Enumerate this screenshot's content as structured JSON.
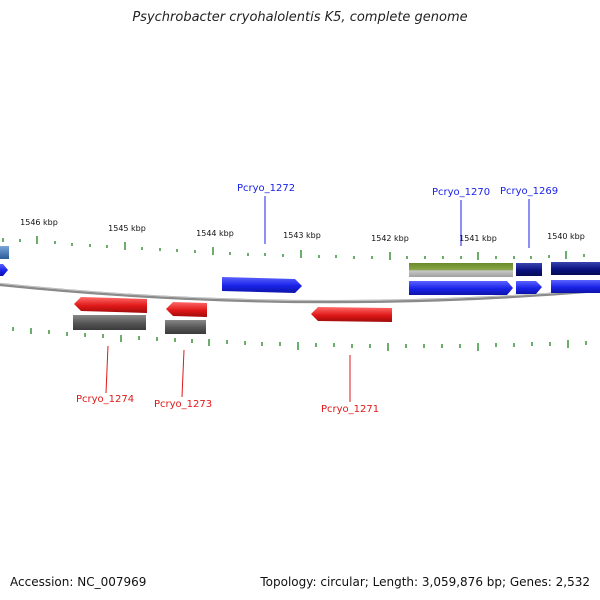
{
  "title": "Psychrobacter cryohalolentis K5, complete genome",
  "footer": {
    "accession": "Accession: NC_007969",
    "summary": "Topology: circular; Length: 3,059,876 bp; Genes: 2,532"
  },
  "kbp_labels": [
    "1546 kbp",
    "1545 kbp",
    "1544 kbp",
    "1543 kbp",
    "1542 kbp",
    "1541 kbp",
    "1540 kbp"
  ],
  "genes": [
    {
      "locus_tag": "Pcryo_1272",
      "strand": "+",
      "color": "#1a22e8"
    },
    {
      "locus_tag": "Pcryo_1270",
      "strand": "+",
      "color": "#1a22e8"
    },
    {
      "locus_tag": "Pcryo_1269",
      "strand": "+",
      "color": "#1a22e8"
    },
    {
      "locus_tag": "Pcryo_1274",
      "strand": "-",
      "color": "#e01818"
    },
    {
      "locus_tag": "Pcryo_1273",
      "strand": "-",
      "color": "#e01818"
    },
    {
      "locus_tag": "Pcryo_1271",
      "strand": "-",
      "color": "#e01818"
    }
  ],
  "colors": {
    "forward_cds": "#1a22e8",
    "reverse_cds": "#e01818",
    "forward_feature": "#0a1380",
    "reverse_feature": "#555555",
    "rna_feature": "#6a8a2a",
    "edge_feature": "#4a7ab8",
    "backbone": "#8a8a8a",
    "ticks": "#2c8a2c"
  }
}
